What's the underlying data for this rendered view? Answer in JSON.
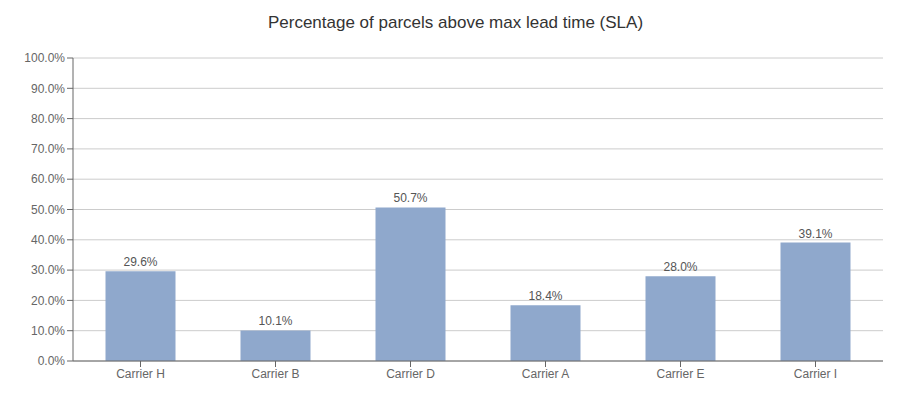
{
  "chart_data": {
    "type": "bar",
    "title": "Percentage of parcels above max lead time (SLA)",
    "categories": [
      "Carrier H",
      "Carrier B",
      "Carrier D",
      "Carrier A",
      "Carrier E",
      "Carrier I"
    ],
    "values": [
      29.6,
      10.1,
      50.7,
      18.4,
      28.0,
      39.1
    ],
    "value_labels": [
      "29.6%",
      "10.1%",
      "50.7%",
      "18.4%",
      "28.0%",
      "39.1%"
    ],
    "data_labels": true,
    "color": "#8fa8cc",
    "ylim": [
      0,
      100
    ],
    "yticks": [
      {
        "value": 0,
        "label": "0.0%"
      },
      {
        "value": 10,
        "label": "10.0%"
      },
      {
        "value": 20,
        "label": "20.0%"
      },
      {
        "value": 30,
        "label": "30.0%"
      },
      {
        "value": 40,
        "label": "40.0%"
      },
      {
        "value": 50,
        "label": "50.0%"
      },
      {
        "value": 60,
        "label": "60.0%"
      },
      {
        "value": 70,
        "label": "70.0%"
      },
      {
        "value": 80,
        "label": "80.0%"
      },
      {
        "value": 90,
        "label": "90.0%"
      },
      {
        "value": 100,
        "label": "100.0%"
      }
    ],
    "grid": true
  }
}
